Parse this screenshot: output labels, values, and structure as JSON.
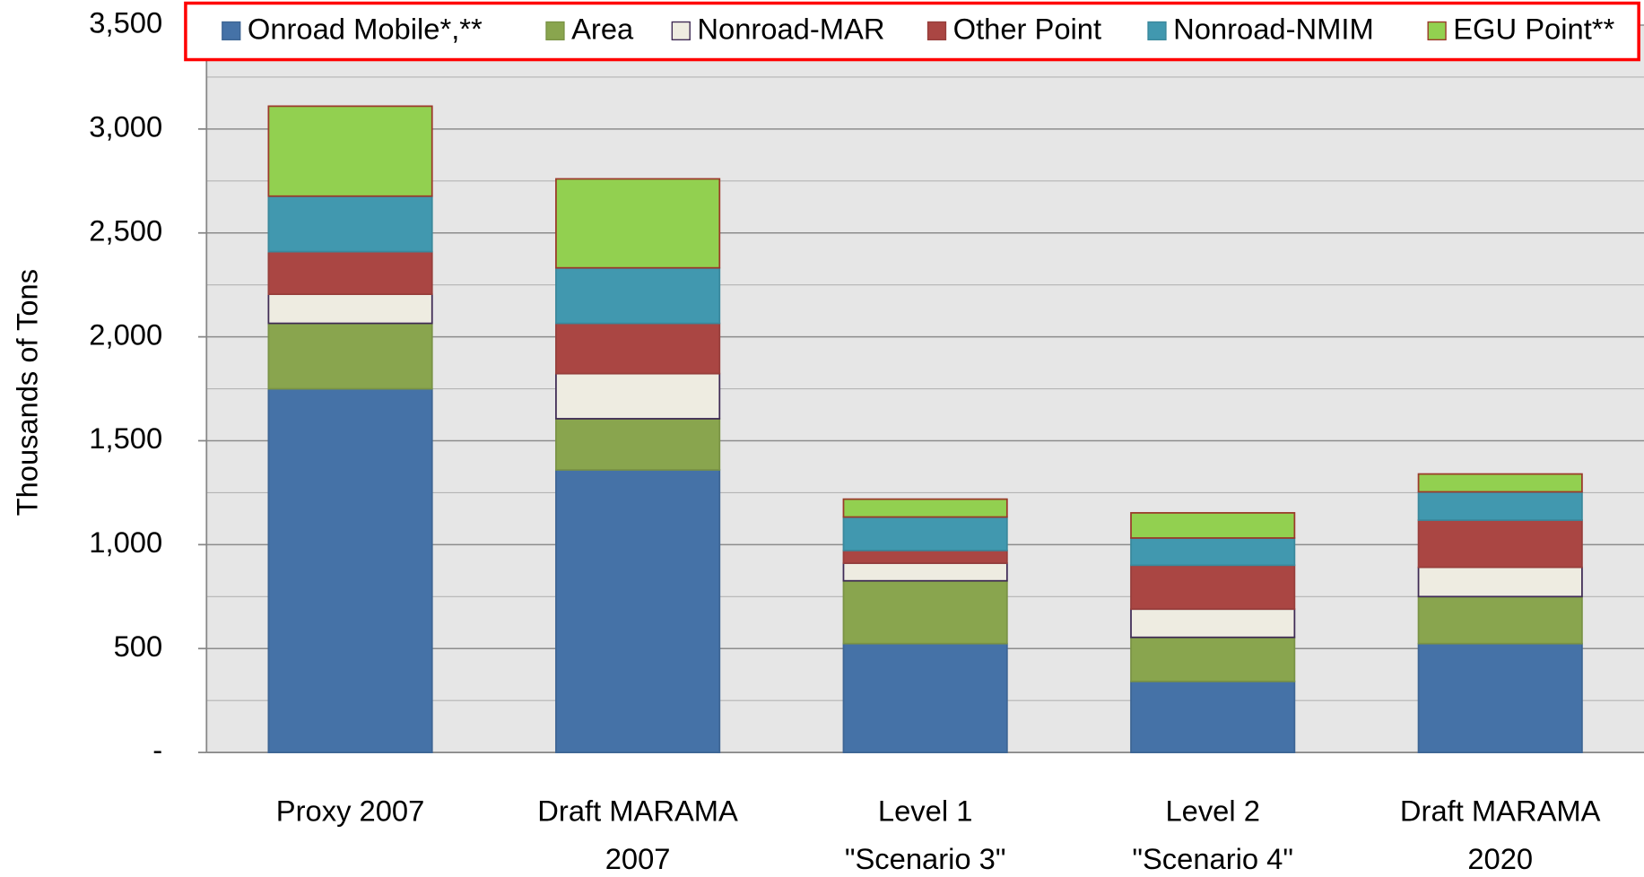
{
  "chart_data": {
    "type": "stacked-bar",
    "y_label": "Thousands of Tons",
    "categories": [
      [
        "Proxy 2007"
      ],
      [
        "Draft MARAMA",
        "2007"
      ],
      [
        "Level 1",
        "\"Scenario 3\""
      ],
      [
        "Level 2",
        "\"Scenario 4\""
      ],
      [
        "Draft MARAMA",
        "2020"
      ]
    ],
    "series": [
      {
        "name": "Onroad Mobile*,**",
        "color": "#4572a7",
        "stroke": "#3d6594",
        "values": [
          1750,
          1360,
          524,
          342,
          524
        ]
      },
      {
        "name": "Area",
        "color": "#89a54e",
        "stroke": "#7a9345",
        "values": [
          315,
          246,
          302,
          212,
          226
        ]
      },
      {
        "name": "Nonroad-MAR",
        "color": "#eeece1",
        "stroke": "#3f2b55",
        "values": [
          140,
          217,
          85,
          136,
          141
        ]
      },
      {
        "name": "Other Point",
        "color": "#aa4643",
        "stroke": "#973e3b",
        "values": [
          205,
          242,
          61,
          211,
          227
        ]
      },
      {
        "name": "Nonroad-NMIM",
        "color": "#4198af",
        "stroke": "#3a889c",
        "values": [
          267,
          267,
          161,
          131,
          136
        ]
      },
      {
        "name": "EGU Point**",
        "color": "#92d050",
        "stroke": "#9b3a2a",
        "values": [
          433,
          428,
          86,
          121,
          86
        ]
      }
    ],
    "ylim": [
      0,
      3500
    ],
    "yticks": [
      {
        "value": 0,
        "label": "-"
      },
      500,
      {
        "value": 1000,
        "label": "1,000"
      },
      {
        "value": 1500,
        "label": "1,500"
      },
      {
        "value": 2000,
        "label": "2,000"
      },
      {
        "value": 2500,
        "label": "2,500"
      },
      {
        "value": 3000,
        "label": "3,000"
      },
      {
        "value": 3500,
        "label": "3,500"
      }
    ],
    "grid": true,
    "legend": "top"
  }
}
